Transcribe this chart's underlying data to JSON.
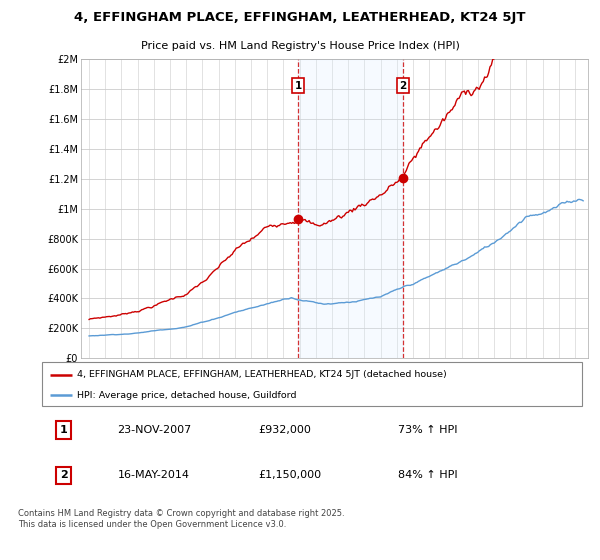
{
  "title": "4, EFFINGHAM PLACE, EFFINGHAM, LEATHERHEAD, KT24 5JT",
  "subtitle": "Price paid vs. HM Land Registry's House Price Index (HPI)",
  "red_label": "4, EFFINGHAM PLACE, EFFINGHAM, LEATHERHEAD, KT24 5JT (detached house)",
  "blue_label": "HPI: Average price, detached house, Guildford",
  "sale1_date": "23-NOV-2007",
  "sale1_price": "£932,000",
  "sale1_hpi": "73% ↑ HPI",
  "sale1_year": 2007.9,
  "sale2_date": "16-MAY-2014",
  "sale2_price": "£1,150,000",
  "sale2_hpi": "84% ↑ HPI",
  "sale2_year": 2014.37,
  "footer": "Contains HM Land Registry data © Crown copyright and database right 2025.\nThis data is licensed under the Open Government Licence v3.0.",
  "background_color": "#ffffff",
  "plot_bg_color": "#ffffff",
  "red_color": "#cc0000",
  "blue_color": "#5b9bd5",
  "shade_color": "#ddeeff",
  "grid_color": "#cccccc",
  "ylim": [
    0,
    2000000
  ],
  "xlim_start": 1994.5,
  "xlim_end": 2025.8
}
